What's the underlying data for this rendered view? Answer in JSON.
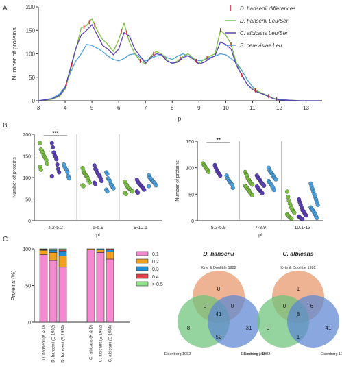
{
  "colors": {
    "green": "#7cc043",
    "purple": "#5b3fb5",
    "blue": "#4aa0dd",
    "diff": "#e0152b",
    "pink": "#f38ad0",
    "orange": "#f0a01e",
    "blue_bar": "#1f8fd6",
    "red": "#e2434b",
    "light_green": "#8fe28a",
    "venn_orange": "#e8956a",
    "venn_green": "#6cc37a",
    "venn_blue": "#5d86d3",
    "axis": "#333333"
  },
  "panel_letters": {
    "a": "A",
    "b": "B",
    "c": "C"
  },
  "chart_data": [
    {
      "id": "A",
      "type": "line",
      "xlabel": "pI",
      "ylabel": "Number of proteins",
      "xlim": [
        3,
        13.6
      ],
      "ylim": [
        0,
        200
      ],
      "xticks": [
        3,
        4,
        5,
        6,
        7,
        8,
        9,
        10,
        11,
        12,
        13
      ],
      "yticks": [
        0,
        50,
        100,
        150,
        200
      ],
      "legend_position": "top-right",
      "legend": [
        {
          "label": "D. hansenii differences",
          "color_key": "diff",
          "marker": "tick"
        },
        {
          "label": "D. hansenii Leu/Ser",
          "color_key": "green",
          "marker": "line"
        },
        {
          "label": "C. albicans Leu/Ser",
          "color_key": "purple",
          "marker": "line"
        },
        {
          "label": "S. cerevisiae Leu",
          "color_key": "blue",
          "marker": "line"
        }
      ],
      "series": [
        {
          "name": "S. cerevisiae Leu",
          "color_key": "blue",
          "x": [
            3,
            3.5,
            3.8,
            4.0,
            4.2,
            4.4,
            4.6,
            4.8,
            5.0,
            5.2,
            5.4,
            5.6,
            5.8,
            6.0,
            6.2,
            6.4,
            6.6,
            6.8,
            7.0,
            7.2,
            7.4,
            7.6,
            7.8,
            8.0,
            8.2,
            8.4,
            8.6,
            8.8,
            9.0,
            9.2,
            9.4,
            9.6,
            9.8,
            10.0,
            10.2,
            10.4,
            10.6,
            10.8,
            11.0,
            11.2,
            11.4,
            11.6,
            11.8,
            12.0,
            12.4,
            12.8,
            13.6
          ],
          "y": [
            0,
            5,
            15,
            30,
            60,
            85,
            100,
            120,
            118,
            112,
            105,
            95,
            88,
            85,
            90,
            98,
            100,
            92,
            85,
            90,
            95,
            98,
            92,
            88,
            95,
            100,
            95,
            90,
            85,
            88,
            92,
            95,
            100,
            98,
            90,
            80,
            65,
            45,
            30,
            20,
            15,
            10,
            5,
            3,
            1,
            0,
            0
          ]
        },
        {
          "name": "D. hansenii Leu/Ser",
          "color_key": "green",
          "x": [
            3,
            3.5,
            3.8,
            4.0,
            4.2,
            4.4,
            4.6,
            4.8,
            5.0,
            5.2,
            5.4,
            5.6,
            5.8,
            6.0,
            6.2,
            6.4,
            6.6,
            6.8,
            7.0,
            7.2,
            7.4,
            7.6,
            7.8,
            8.0,
            8.2,
            8.4,
            8.6,
            8.8,
            9.0,
            9.2,
            9.4,
            9.6,
            9.8,
            10.0,
            10.2,
            10.4,
            10.6,
            10.8,
            11.0,
            11.2,
            11.4,
            11.6,
            11.8,
            12.0,
            12.4,
            12.8,
            13.6
          ],
          "y": [
            0,
            3,
            10,
            25,
            65,
            110,
            155,
            160,
            175,
            150,
            130,
            120,
            105,
            130,
            165,
            125,
            100,
            85,
            78,
            95,
            105,
            100,
            88,
            78,
            85,
            95,
            100,
            90,
            80,
            88,
            95,
            100,
            150,
            140,
            120,
            80,
            55,
            35,
            25,
            20,
            15,
            10,
            5,
            2,
            1,
            0,
            0
          ]
        },
        {
          "name": "C. albicans Leu/Ser",
          "color_key": "purple",
          "x": [
            3,
            3.5,
            3.8,
            4.0,
            4.2,
            4.4,
            4.6,
            4.8,
            5.0,
            5.2,
            5.4,
            5.6,
            5.8,
            6.0,
            6.2,
            6.4,
            6.6,
            6.8,
            7.0,
            7.2,
            7.4,
            7.6,
            7.8,
            8.0,
            8.2,
            8.4,
            8.6,
            8.8,
            9.0,
            9.2,
            9.4,
            9.6,
            9.8,
            10.0,
            10.2,
            10.4,
            10.6,
            10.8,
            11.0,
            11.2,
            11.4,
            11.6,
            11.8,
            12.0,
            12.4,
            12.8,
            13.6
          ],
          "y": [
            0,
            4,
            12,
            28,
            70,
            112,
            140,
            150,
            162,
            140,
            118,
            110,
            98,
            110,
            145,
            138,
            110,
            95,
            80,
            92,
            100,
            98,
            85,
            80,
            82,
            92,
            96,
            88,
            78,
            82,
            90,
            96,
            125,
            120,
            110,
            75,
            55,
            35,
            24,
            18,
            14,
            9,
            4,
            2,
            1,
            0,
            0
          ]
        }
      ],
      "difference_markers_x": [
        4.05,
        4.25,
        4.7,
        4.9,
        5.1,
        6.1,
        6.3,
        6.8,
        7.3,
        7.7,
        8.3,
        8.9,
        9.3,
        9.8,
        10.2,
        10.6,
        11.1,
        11.6,
        11.9
      ]
    },
    {
      "id": "B-left",
      "type": "scatter",
      "xlabel": "pI",
      "ylabel": "Number of proteins",
      "ylim": [
        0,
        200
      ],
      "yticks": [
        0,
        50,
        100,
        150,
        200
      ],
      "categories": [
        "4.2-5.2",
        "6-6.9",
        "9-10.1"
      ],
      "significance": {
        "label": "***",
        "from": 0,
        "to": 2,
        "group": 0
      },
      "groups": [
        {
          "green": [
            180,
            165,
            162,
            158,
            152,
            148,
            145,
            140,
            132,
            125,
            118
          ],
          "purple": [
            180,
            170,
            158,
            152,
            148,
            142,
            130,
            120,
            112,
            103
          ],
          "blue": [
            130,
            125,
            120,
            118,
            112,
            103,
            98
          ]
        },
        {
          "green": [
            122,
            115,
            110,
            108,
            104,
            102,
            98,
            92,
            88,
            82,
            80
          ],
          "purple": [
            128,
            120,
            118,
            112,
            108,
            106,
            102,
            98,
            92,
            88,
            85
          ],
          "blue": [
            112,
            108,
            98,
            95,
            92,
            85,
            82,
            78,
            75,
            72,
            68
          ]
        },
        {
          "green": [
            90,
            85,
            82,
            78,
            76,
            74,
            72,
            70,
            68,
            65,
            62
          ],
          "purple": [
            95,
            90,
            87,
            85,
            82,
            80,
            78,
            75,
            72,
            68,
            65
          ],
          "blue": [
            105,
            100,
            98,
            95,
            92,
            90,
            88,
            85,
            82,
            80
          ]
        }
      ]
    },
    {
      "id": "B-right",
      "type": "scatter",
      "xlabel": "pI",
      "ylabel": "Number of proteins",
      "ylim": [
        0,
        150
      ],
      "yticks": [
        0,
        50,
        100,
        150
      ],
      "categories": [
        "5.3-5.9",
        "7-8.9",
        "10.1-13"
      ],
      "significance": {
        "label": "**",
        "from": 0,
        "to": 2,
        "group": 0
      },
      "groups": [
        {
          "green": [
            108,
            105,
            103,
            100,
            98,
            96,
            92
          ],
          "purple": [
            105,
            100,
            96,
            92,
            90,
            88,
            85
          ],
          "blue": [
            85,
            80,
            78,
            75,
            72,
            70,
            68,
            62
          ]
        },
        {
          "green": [
            92,
            88,
            85,
            80,
            78,
            75,
            72,
            70,
            68,
            66,
            64,
            62,
            60,
            58,
            55,
            52,
            50,
            48
          ],
          "purple": [
            85,
            82,
            80,
            78,
            75,
            72,
            70,
            68,
            66,
            65,
            62,
            60,
            58,
            56,
            54,
            52
          ],
          "blue": [
            100,
            95,
            92,
            90,
            88,
            85,
            82,
            80,
            78,
            75,
            72,
            70,
            68,
            65,
            62,
            58
          ]
        },
        {
          "green": [
            55,
            45,
            38,
            32,
            28,
            24,
            20,
            18,
            15,
            12,
            10,
            8,
            6,
            5,
            4
          ],
          "purple": [
            40,
            35,
            30,
            25,
            20,
            18,
            15,
            12,
            10,
            8,
            6,
            5,
            4,
            3
          ],
          "blue": [
            70,
            65,
            60,
            55,
            50,
            45,
            40,
            35,
            30,
            25,
            22,
            20,
            18,
            15,
            12,
            8,
            5
          ]
        }
      ]
    },
    {
      "id": "C",
      "type": "bar",
      "stacked": true,
      "ylabel": "Proteins (%)",
      "ylim": [
        0,
        100
      ],
      "yticks": [
        0,
        50,
        100
      ],
      "categories": [
        "D. hansenii (K & D)",
        "D. hansenii (E 1982)",
        "D. hansenii (E 1984)",
        "C. albicans (K & D)",
        "C. albicans (E 1982)",
        "C. albicans (E 1984)"
      ],
      "series": [
        {
          "name": "0.1",
          "color_key": "pink",
          "values": [
            92,
            84,
            75,
            99,
            95,
            86
          ]
        },
        {
          "name": "0.2",
          "color_key": "orange",
          "values": [
            6,
            11,
            15,
            1,
            4,
            10
          ]
        },
        {
          "name": "0.3",
          "color_key": "blue_bar",
          "values": [
            1,
            3,
            7,
            0,
            1,
            3
          ]
        },
        {
          "name": "0.4",
          "color_key": "red",
          "values": [
            0.5,
            1,
            2,
            0,
            0,
            1
          ]
        },
        {
          "name": "> 0.5",
          "color_key": "light_green",
          "values": [
            0.5,
            1,
            1,
            0,
            0,
            0
          ]
        }
      ]
    }
  ],
  "venns": [
    {
      "title": "D. hansenii",
      "sets": [
        "Kyte & Doolittle 1982",
        "Eisenberg 1982",
        "Eisenberg 1984"
      ],
      "regions": {
        "top_only": "0",
        "left_only": "8",
        "right_only": "31",
        "top_left": "0",
        "top_right": "0",
        "left_right": "52",
        "all": "41"
      }
    },
    {
      "title": "C. albicans",
      "sets": [
        "Kyte & Doolittle 1982",
        "Eisenberg 1982",
        "Eisenberg 1984"
      ],
      "regions": {
        "top_only": "1",
        "left_only": "0",
        "right_only": "41",
        "top_left": "0",
        "top_right": "6",
        "left_right": "1",
        "all": "8"
      }
    }
  ]
}
